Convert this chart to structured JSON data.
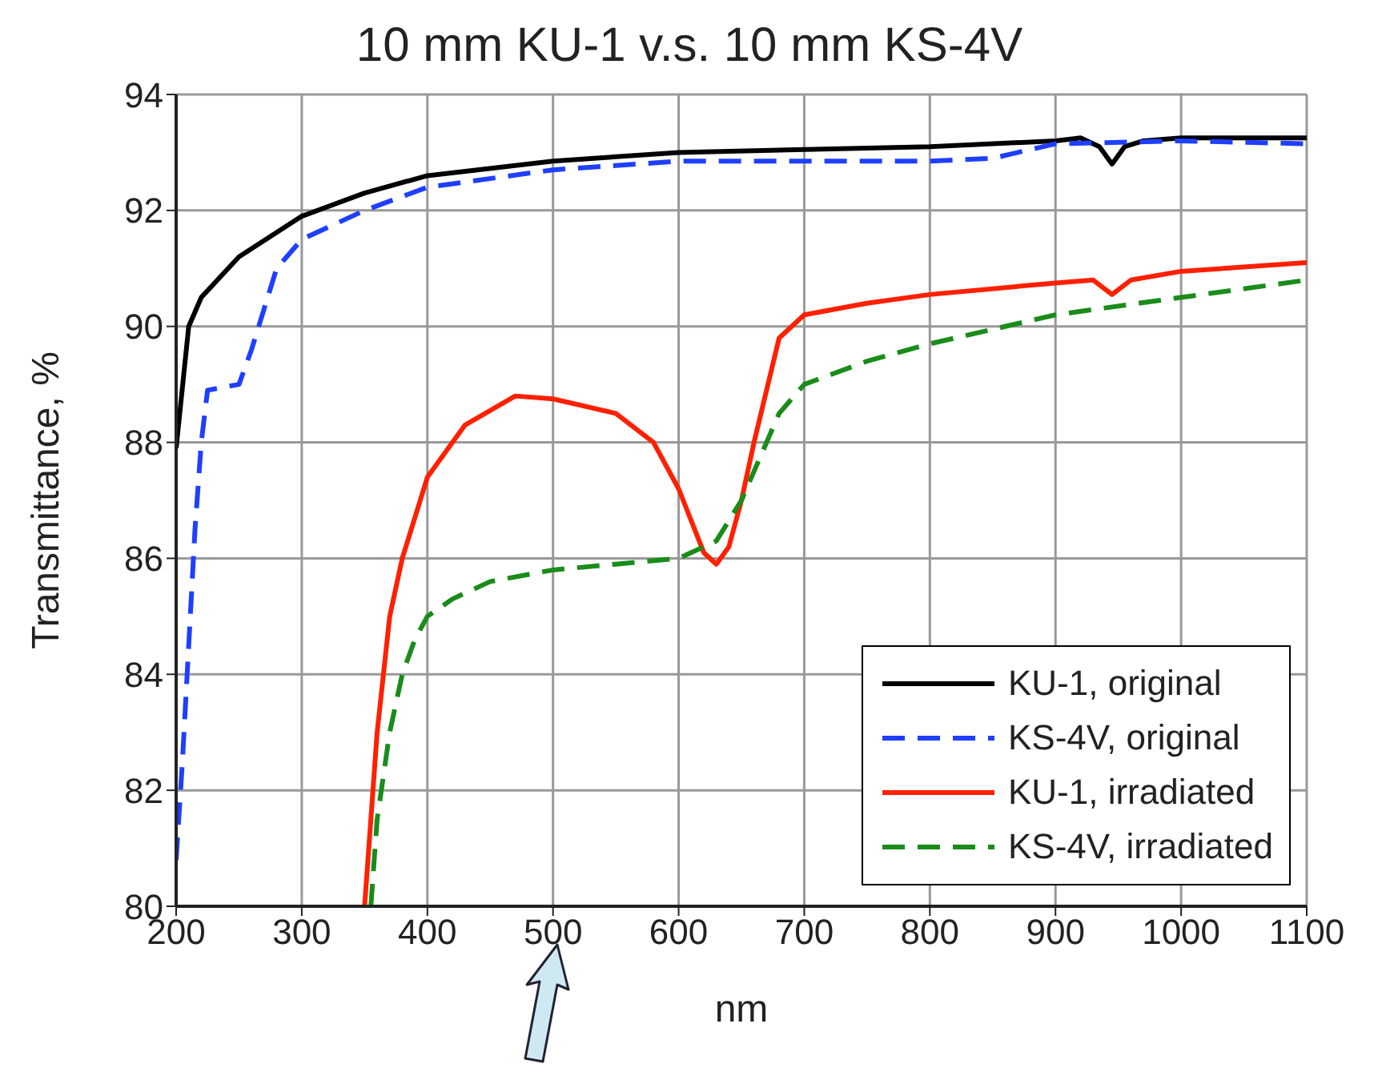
{
  "chart_data": {
    "type": "line",
    "title": "10 mm KU-1 v.s. 10 mm KS-4V",
    "xlabel": "nm",
    "ylabel": "Transmittance, %",
    "xlim": [
      200,
      1100
    ],
    "xticks": [
      200,
      300,
      400,
      500,
      600,
      700,
      800,
      900,
      1000,
      1100
    ],
    "ylim": [
      80,
      94
    ],
    "yticks": [
      80,
      82,
      84,
      86,
      88,
      90,
      92,
      94
    ],
    "grid": true,
    "legend": "bottom right",
    "marker": "none",
    "series": [
      {
        "name": "KU-1, original",
        "color": "#000000",
        "line_style": "solid",
        "x": [
          200,
          210,
          220,
          250,
          300,
          350,
          400,
          500,
          600,
          700,
          800,
          900,
          920,
          935,
          945,
          955,
          970,
          1000,
          1100
        ],
        "values": [
          87.9,
          90.0,
          90.5,
          91.2,
          91.9,
          92.3,
          92.6,
          92.85,
          93.0,
          93.05,
          93.1,
          93.2,
          93.25,
          93.1,
          92.8,
          93.1,
          93.2,
          93.25,
          93.25
        ]
      },
      {
        "name": "KS-4V, original",
        "color": "#1f3fff",
        "line_style": "dashed",
        "x": [
          200,
          205,
          210,
          215,
          220,
          225,
          250,
          260,
          280,
          300,
          350,
          400,
          500,
          600,
          700,
          800,
          850,
          900,
          1000,
          1100
        ],
        "values": [
          80.8,
          82.5,
          84.5,
          86.5,
          88.0,
          88.9,
          89.0,
          89.6,
          91.0,
          91.5,
          92.0,
          92.4,
          92.7,
          92.85,
          92.85,
          92.85,
          92.9,
          93.15,
          93.2,
          93.15
        ]
      },
      {
        "name": "KU-1, irradiated",
        "color": "#ff2000",
        "line_style": "solid",
        "x": [
          350,
          355,
          360,
          370,
          380,
          400,
          430,
          470,
          500,
          550,
          580,
          600,
          620,
          630,
          640,
          650,
          660,
          680,
          700,
          750,
          800,
          900,
          930,
          945,
          960,
          1000,
          1100
        ],
        "values": [
          80.0,
          81.5,
          83.0,
          85.0,
          86.0,
          87.4,
          88.3,
          88.8,
          88.75,
          88.5,
          88.0,
          87.2,
          86.1,
          85.9,
          86.2,
          87.0,
          88.0,
          89.8,
          90.2,
          90.4,
          90.55,
          90.75,
          90.8,
          90.55,
          90.8,
          90.95,
          91.1
        ]
      },
      {
        "name": "KS-4V, irradiated",
        "color": "#1a8c1a",
        "line_style": "dashed",
        "x": [
          355,
          360,
          370,
          380,
          390,
          400,
          420,
          450,
          500,
          550,
          600,
          630,
          650,
          680,
          700,
          750,
          800,
          900,
          1000,
          1100
        ],
        "values": [
          80.0,
          81.5,
          83.0,
          84.0,
          84.6,
          85.0,
          85.3,
          85.6,
          85.8,
          85.9,
          86.0,
          86.3,
          87.0,
          88.5,
          89.0,
          89.4,
          89.7,
          90.2,
          90.5,
          90.8
        ]
      }
    ]
  }
}
